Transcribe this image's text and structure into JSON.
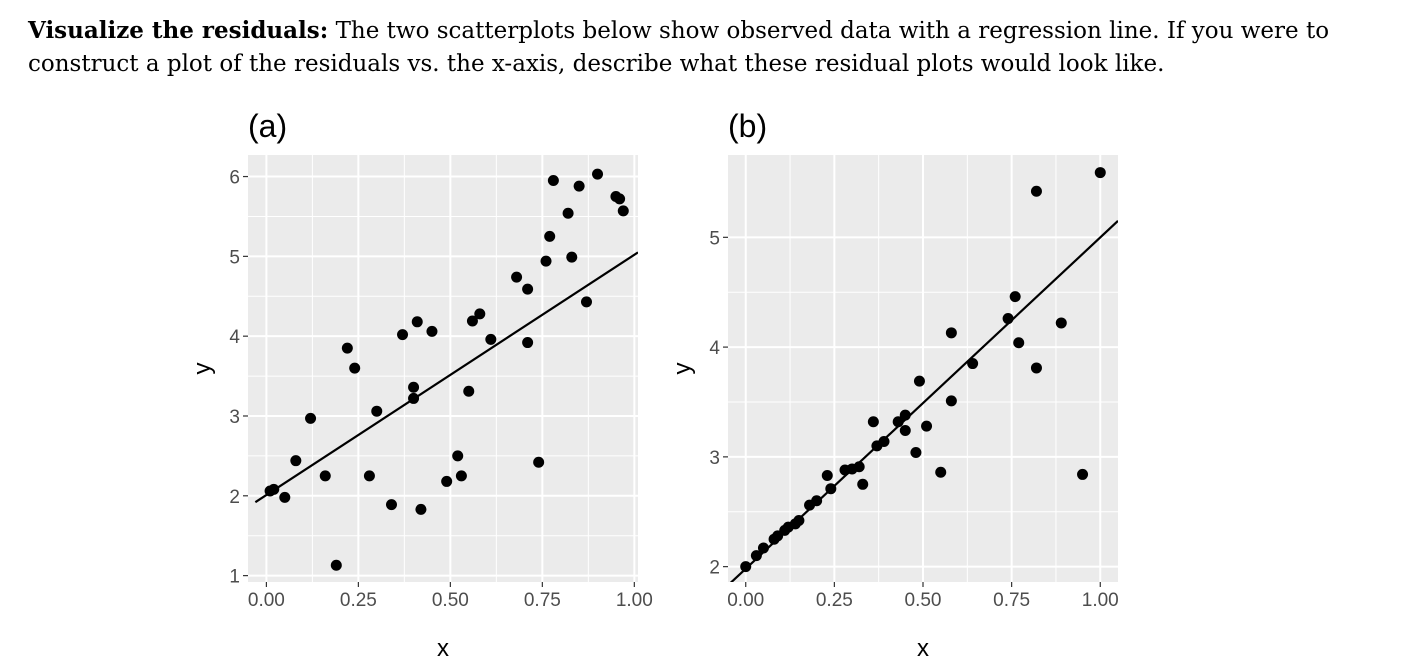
{
  "question": {
    "heading": "Visualize the residuals:",
    "body": "The two scatterplots below show observed data with a regression line. If you were to construct a plot of the residuals vs. the x-axis, describe what these residual plots would look like."
  },
  "chart_data": [
    {
      "type": "scatter",
      "title": "(a)",
      "xlabel": "x",
      "ylabel": "y",
      "xlim": [
        -0.05,
        1.01
      ],
      "ylim": [
        0.92,
        6.27
      ],
      "xticks": [
        0,
        0.25,
        0.5,
        0.75,
        1
      ],
      "xtick_labels": [
        "0.00",
        "0.25",
        "0.50",
        "0.75",
        "1.00"
      ],
      "yticks": [
        1,
        2,
        3,
        4,
        5,
        6
      ],
      "ytick_labels": [
        "1",
        "2",
        "3",
        "4",
        "5",
        "6"
      ],
      "grid": true,
      "background": "#ebebeb",
      "point_color": "#000000",
      "points": [
        [
          0.01,
          2.06
        ],
        [
          0.02,
          2.08
        ],
        [
          0.05,
          1.98
        ],
        [
          0.08,
          2.44
        ],
        [
          0.12,
          2.97
        ],
        [
          0.16,
          2.25
        ],
        [
          0.19,
          1.13
        ],
        [
          0.22,
          3.85
        ],
        [
          0.24,
          3.6
        ],
        [
          0.28,
          2.25
        ],
        [
          0.3,
          3.06
        ],
        [
          0.34,
          1.89
        ],
        [
          0.37,
          4.02
        ],
        [
          0.4,
          3.36
        ],
        [
          0.4,
          3.22
        ],
        [
          0.41,
          4.18
        ],
        [
          0.42,
          1.83
        ],
        [
          0.45,
          4.06
        ],
        [
          0.49,
          2.18
        ],
        [
          0.52,
          2.5
        ],
        [
          0.53,
          2.25
        ],
        [
          0.55,
          3.31
        ],
        [
          0.56,
          4.19
        ],
        [
          0.58,
          4.28
        ],
        [
          0.61,
          3.96
        ],
        [
          0.68,
          4.74
        ],
        [
          0.71,
          4.59
        ],
        [
          0.71,
          3.92
        ],
        [
          0.74,
          2.42
        ],
        [
          0.76,
          4.94
        ],
        [
          0.77,
          5.25
        ],
        [
          0.78,
          5.95
        ],
        [
          0.82,
          5.54
        ],
        [
          0.83,
          4.99
        ],
        [
          0.85,
          5.88
        ],
        [
          0.87,
          4.43
        ],
        [
          0.9,
          6.03
        ],
        [
          0.95,
          5.75
        ],
        [
          0.96,
          5.72
        ],
        [
          0.97,
          5.57
        ]
      ],
      "regression_line": {
        "x": [
          -0.03,
          1.01
        ],
        "y": [
          1.92,
          5.05
        ]
      }
    },
    {
      "type": "scatter",
      "title": "(b)",
      "xlabel": "x",
      "ylabel": "y",
      "xlim": [
        -0.05,
        1.05
      ],
      "ylim": [
        1.86,
        5.75
      ],
      "xticks": [
        0,
        0.25,
        0.5,
        0.75,
        1
      ],
      "xtick_labels": [
        "0.00",
        "0.25",
        "0.50",
        "0.75",
        "1.00"
      ],
      "yticks": [
        2,
        3,
        4,
        5
      ],
      "ytick_labels": [
        "2",
        "3",
        "4",
        "5"
      ],
      "grid": true,
      "background": "#ebebeb",
      "point_color": "#000000",
      "points": [
        [
          0.0,
          2.0
        ],
        [
          0.03,
          2.1
        ],
        [
          0.05,
          2.17
        ],
        [
          0.08,
          2.25
        ],
        [
          0.09,
          2.28
        ],
        [
          0.11,
          2.33
        ],
        [
          0.12,
          2.36
        ],
        [
          0.14,
          2.39
        ],
        [
          0.15,
          2.42
        ],
        [
          0.18,
          2.56
        ],
        [
          0.2,
          2.6
        ],
        [
          0.23,
          2.83
        ],
        [
          0.24,
          2.71
        ],
        [
          0.28,
          2.88
        ],
        [
          0.3,
          2.89
        ],
        [
          0.32,
          2.91
        ],
        [
          0.33,
          2.75
        ],
        [
          0.36,
          3.32
        ],
        [
          0.37,
          3.1
        ],
        [
          0.39,
          3.14
        ],
        [
          0.43,
          3.32
        ],
        [
          0.45,
          3.38
        ],
        [
          0.45,
          3.24
        ],
        [
          0.48,
          3.04
        ],
        [
          0.49,
          3.69
        ],
        [
          0.51,
          3.28
        ],
        [
          0.55,
          2.86
        ],
        [
          0.58,
          3.51
        ],
        [
          0.58,
          4.13
        ],
        [
          0.64,
          3.85
        ],
        [
          0.74,
          4.26
        ],
        [
          0.76,
          4.46
        ],
        [
          0.77,
          4.04
        ],
        [
          0.82,
          3.81
        ],
        [
          0.82,
          5.42
        ],
        [
          0.89,
          4.22
        ],
        [
          0.95,
          2.84
        ],
        [
          1.0,
          5.59
        ]
      ],
      "regression_line": {
        "x": [
          -0.05,
          1.05
        ],
        "y": [
          1.83,
          5.15
        ]
      }
    }
  ]
}
